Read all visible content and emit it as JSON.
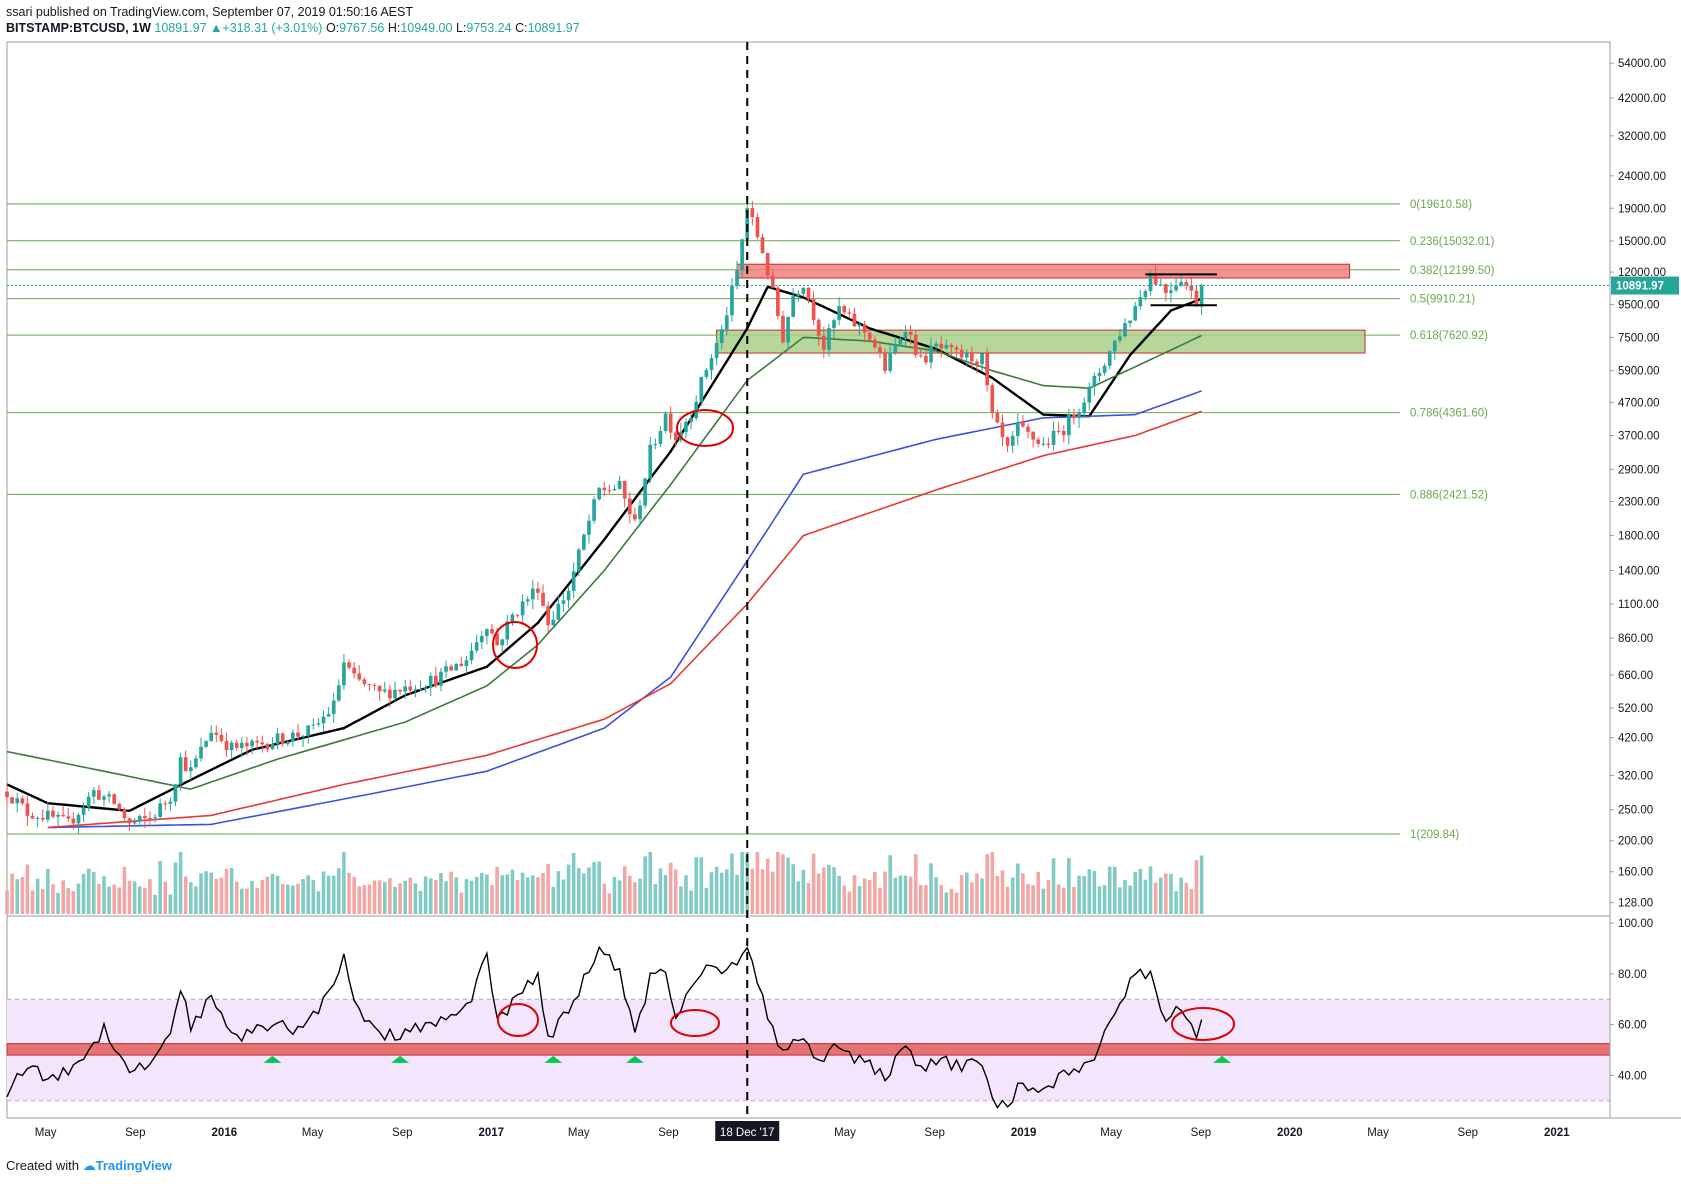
{
  "header": {
    "author": "ssari",
    "published_text": " published on TradingView.com, September 07, 2019 01:50:16 AEST",
    "symbol": "BITSTAMP:BTCUSD, 1W",
    "last": "10891.97",
    "change": "+318.31 (+3.01%)",
    "o_label": "O:",
    "o": "9767.56",
    "h_label": "H:",
    "h": "10949.00",
    "l_label": "L:",
    "l": "9753.24",
    "c_label": "C:",
    "c": "10891.97"
  },
  "footer": {
    "created_with": "Created with",
    "brand": "TradingView"
  },
  "colors": {
    "up": "#26a69a",
    "down": "#ef5350",
    "ma_black": "#000000",
    "ma_green": "#3d7a3d",
    "ma_blue": "#3c50dc",
    "ma_red": "#e53935",
    "fib": "#6aa84f",
    "rsi_band": "#f3e5fc",
    "resistance_zone": "#f08080",
    "support_zone": "#a9cf8a",
    "annotation": "#e00000",
    "marker": "#00c853"
  },
  "chart_data": [
    {
      "type": "candlestick",
      "title": "BITSTAMP:BTCUSD, 1W",
      "y_scale": "log",
      "price_ticks": [
        "54000.00",
        "42000.00",
        "32000.00",
        "24000.00",
        "19000.00",
        "15000.00",
        "12000.00",
        "9500.00",
        "7500.00",
        "5900.00",
        "4700.00",
        "3700.00",
        "2900.00",
        "2300.00",
        "1800.00",
        "1400.00",
        "1100.00",
        "860.00",
        "660.00",
        "520.00",
        "420.00",
        "320.00",
        "250.00",
        "200.00",
        "160.00",
        "128.00"
      ],
      "price_tick_values": [
        54000,
        42000,
        32000,
        24000,
        19000,
        15000,
        12000,
        9500,
        7500,
        5900,
        4700,
        3700,
        2900,
        2300,
        1800,
        1400,
        1100,
        860,
        660,
        520,
        420,
        320,
        250,
        200,
        160,
        128
      ],
      "ylim": [
        118,
        62000
      ],
      "x_ticks": [
        "May",
        "Sep",
        "2016",
        "May",
        "Sep",
        "2017",
        "May",
        "Sep",
        "18 Dec '17",
        "May",
        "Sep",
        "2019",
        "May",
        "Sep",
        "2020",
        "May",
        "Sep",
        "2021"
      ],
      "x_tick_dates": [
        "2015-05",
        "2015-09",
        "2016-01",
        "2016-05",
        "2016-09",
        "2017-01",
        "2017-05",
        "2017-09",
        "2017-12-18",
        "2018-05",
        "2018-09",
        "2019-01",
        "2019-05",
        "2019-09",
        "2020-01",
        "2020-05",
        "2020-09",
        "2021-01"
      ],
      "xlim": [
        "2015-03-09",
        "2021-03-15"
      ],
      "last_price_label": "10891.97",
      "last_price": 10891.97,
      "fibonacci": [
        {
          "label": "0(19610.58)",
          "price": 19610.58
        },
        {
          "label": "0.236(15032.01)",
          "price": 15032.01
        },
        {
          "label": "0.382(12199.50)",
          "price": 12199.5
        },
        {
          "label": "0.5(9910.21)",
          "price": 9910.21
        },
        {
          "label": "0.618(7620.92)",
          "price": 7620.92
        },
        {
          "label": "0.786(4361.60)",
          "price": 4361.6
        },
        {
          "label": "0.886(2421.52)",
          "price": 2421.52
        },
        {
          "label": "1(209.84)",
          "price": 209.84
        }
      ],
      "zones": [
        {
          "name": "resistance",
          "from": "2017-12-04",
          "to": "2020-03-23",
          "low": 11500,
          "high": 12700
        },
        {
          "name": "support",
          "from": "2017-11-06",
          "to": "2020-04-13",
          "low": 6700,
          "high": 7900
        }
      ],
      "vertical_marker": {
        "date": "2017-12-18",
        "label": "18 Dec '17"
      },
      "price_path": [
        [
          "2015-03-09",
          285
        ],
        [
          "2015-04-06",
          245
        ],
        [
          "2015-05-04",
          238
        ],
        [
          "2015-06-01",
          225
        ],
        [
          "2015-07-06",
          285
        ],
        [
          "2015-08-03",
          262
        ],
        [
          "2015-08-24",
          225
        ],
        [
          "2015-09-21",
          235
        ],
        [
          "2015-10-19",
          275
        ],
        [
          "2015-11-02",
          360
        ],
        [
          "2015-11-16",
          330
        ],
        [
          "2015-12-14",
          445
        ],
        [
          "2016-01-11",
          390
        ],
        [
          "2016-02-08",
          395
        ],
        [
          "2016-03-14",
          415
        ],
        [
          "2016-04-11",
          430
        ],
        [
          "2016-05-02",
          445
        ],
        [
          "2016-05-30",
          530
        ],
        [
          "2016-06-13",
          720
        ],
        [
          "2016-06-27",
          640
        ],
        [
          "2016-08-01",
          575
        ],
        [
          "2016-09-05",
          605
        ],
        [
          "2016-10-17",
          640
        ],
        [
          "2016-11-28",
          740
        ],
        [
          "2016-12-26",
          960
        ],
        [
          "2017-01-09",
          820
        ],
        [
          "2017-01-30",
          1010
        ],
        [
          "2017-03-06",
          1250
        ],
        [
          "2017-03-20",
          960
        ],
        [
          "2017-04-17",
          1220
        ],
        [
          "2017-05-08",
          1780
        ],
        [
          "2017-05-29",
          2500
        ],
        [
          "2017-06-26",
          2550
        ],
        [
          "2017-07-17",
          1950
        ],
        [
          "2017-08-07",
          3300
        ],
        [
          "2017-08-28",
          4300
        ],
        [
          "2017-09-11",
          3650
        ],
        [
          "2017-10-02",
          4400
        ],
        [
          "2017-10-23",
          6000
        ],
        [
          "2017-11-13",
          7800
        ],
        [
          "2017-12-04",
          12000
        ],
        [
          "2017-12-18",
          19100
        ],
        [
          "2018-01-08",
          14000
        ],
        [
          "2018-02-05",
          7500
        ],
        [
          "2018-02-19",
          10200
        ],
        [
          "2018-03-05",
          11200
        ],
        [
          "2018-04-02",
          7000
        ],
        [
          "2018-04-23",
          9200
        ],
        [
          "2018-05-07",
          8500
        ],
        [
          "2018-06-04",
          7600
        ],
        [
          "2018-06-25",
          6000
        ],
        [
          "2018-07-23",
          8200
        ],
        [
          "2018-08-13",
          6300
        ],
        [
          "2018-09-03",
          7000
        ],
        [
          "2018-10-01",
          6600
        ],
        [
          "2018-11-05",
          6400
        ],
        [
          "2018-11-19",
          4200
        ],
        [
          "2018-12-10",
          3300
        ],
        [
          "2018-12-24",
          3900
        ],
        [
          "2019-01-28",
          3450
        ],
        [
          "2019-02-25",
          3900
        ],
        [
          "2019-04-01",
          5100
        ],
        [
          "2019-05-13",
          7800
        ],
        [
          "2019-05-27",
          8700
        ],
        [
          "2019-06-24",
          11800
        ],
        [
          "2019-07-15",
          10500
        ],
        [
          "2019-08-05",
          11600
        ],
        [
          "2019-08-26",
          9700
        ],
        [
          "2019-09-02",
          10891.97
        ]
      ],
      "moving_averages": [
        {
          "color": "#000000",
          "points": [
            [
              "2015-03-09",
              300
            ],
            [
              "2015-05-04",
              262
            ],
            [
              "2015-08-24",
              248
            ],
            [
              "2015-11-16",
              310
            ],
            [
              "2016-02-08",
              385
            ],
            [
              "2016-06-13",
              450
            ],
            [
              "2016-09-05",
              570
            ],
            [
              "2016-12-26",
              700
            ],
            [
              "2017-03-06",
              960
            ],
            [
              "2017-06-05",
              1750
            ],
            [
              "2017-09-04",
              3300
            ],
            [
              "2017-12-18",
              8000
            ],
            [
              "2018-01-15",
              10800
            ],
            [
              "2018-03-05",
              10000
            ],
            [
              "2018-06-04",
              8000
            ],
            [
              "2018-09-03",
              6900
            ],
            [
              "2018-11-19",
              5600
            ],
            [
              "2019-01-28",
              4300
            ],
            [
              "2019-04-01",
              4250
            ],
            [
              "2019-05-27",
              6600
            ],
            [
              "2019-07-22",
              9100
            ],
            [
              "2019-09-02",
              9900
            ]
          ]
        },
        {
          "color": "#3d7a3d",
          "points": [
            [
              "2015-03-09",
              380
            ],
            [
              "2015-08-03",
              325
            ],
            [
              "2015-11-16",
              290
            ],
            [
              "2016-03-14",
              360
            ],
            [
              "2016-09-05",
              470
            ],
            [
              "2016-12-26",
              610
            ],
            [
              "2017-03-06",
              820
            ],
            [
              "2017-06-05",
              1400
            ],
            [
              "2017-09-04",
              2600
            ],
            [
              "2017-12-18",
              5500
            ],
            [
              "2018-03-05",
              7500
            ],
            [
              "2018-06-04",
              7300
            ],
            [
              "2018-09-03",
              6800
            ],
            [
              "2018-11-19",
              5900
            ],
            [
              "2019-01-28",
              5300
            ],
            [
              "2019-04-01",
              5200
            ],
            [
              "2019-07-01",
              6500
            ],
            [
              "2019-09-02",
              7600
            ]
          ]
        },
        {
          "color": "#3c50dc",
          "points": [
            [
              "2015-05-04",
              220
            ],
            [
              "2015-12-14",
              225
            ],
            [
              "2016-06-13",
              270
            ],
            [
              "2016-12-26",
              330
            ],
            [
              "2017-06-05",
              450
            ],
            [
              "2017-09-04",
              650
            ],
            [
              "2017-12-18",
              1500
            ],
            [
              "2018-03-05",
              2800
            ],
            [
              "2018-09-03",
              3600
            ],
            [
              "2019-01-28",
              4200
            ],
            [
              "2019-06-03",
              4300
            ],
            [
              "2019-09-02",
              5100
            ]
          ]
        },
        {
          "color": "#e53935",
          "points": [
            [
              "2015-05-04",
              220
            ],
            [
              "2015-12-14",
              240
            ],
            [
              "2016-06-13",
              300
            ],
            [
              "2016-12-26",
              370
            ],
            [
              "2017-06-05",
              480
            ],
            [
              "2017-09-04",
              620
            ],
            [
              "2017-12-18",
              1100
            ],
            [
              "2018-03-05",
              1800
            ],
            [
              "2018-09-03",
              2500
            ],
            [
              "2019-01-28",
              3200
            ],
            [
              "2019-06-03",
              3700
            ],
            [
              "2019-09-02",
              4400
            ]
          ]
        }
      ]
    },
    {
      "type": "line",
      "title": "RSI",
      "y_ticks": [
        "100.00",
        "80.00",
        "60.00",
        "40.00"
      ],
      "y_tick_values": [
        100,
        80,
        60,
        40
      ],
      "ylim": [
        24,
        102
      ],
      "band": [
        30,
        70
      ],
      "highlight_zone": [
        48,
        52.5
      ],
      "values": [
        [
          "2015-03-09",
          34
        ],
        [
          "2015-04-06",
          44
        ],
        [
          "2015-05-04",
          38
        ],
        [
          "2015-06-01",
          42
        ],
        [
          "2015-07-06",
          52
        ],
        [
          "2015-07-20",
          59
        ],
        [
          "2015-08-24",
          42
        ],
        [
          "2015-09-21",
          44
        ],
        [
          "2015-10-19",
          58
        ],
        [
          "2015-11-02",
          74
        ],
        [
          "2015-11-16",
          60
        ],
        [
          "2015-12-14",
          70
        ],
        [
          "2016-01-11",
          55
        ],
        [
          "2016-02-08",
          57
        ],
        [
          "2016-03-14",
          60
        ],
        [
          "2016-04-11",
          58
        ],
        [
          "2016-05-02",
          64
        ],
        [
          "2016-05-30",
          75
        ],
        [
          "2016-06-13",
          86
        ],
        [
          "2016-06-27",
          68
        ],
        [
          "2016-08-01",
          55
        ],
        [
          "2016-09-05",
          57
        ],
        [
          "2016-10-17",
          60
        ],
        [
          "2016-11-28",
          66
        ],
        [
          "2016-12-26",
          88
        ],
        [
          "2017-01-09",
          62
        ],
        [
          "2017-01-30",
          68
        ],
        [
          "2017-03-06",
          80
        ],
        [
          "2017-03-20",
          55
        ],
        [
          "2017-04-17",
          65
        ],
        [
          "2017-05-08",
          78
        ],
        [
          "2017-05-29",
          90
        ],
        [
          "2017-06-26",
          80
        ],
        [
          "2017-07-17",
          55
        ],
        [
          "2017-08-07",
          78
        ],
        [
          "2017-08-28",
          82
        ],
        [
          "2017-09-11",
          63
        ],
        [
          "2017-10-02",
          75
        ],
        [
          "2017-10-23",
          84
        ],
        [
          "2017-11-13",
          80
        ],
        [
          "2017-12-04",
          86
        ],
        [
          "2017-12-18",
          91
        ],
        [
          "2018-01-08",
          70
        ],
        [
          "2018-02-05",
          48
        ],
        [
          "2018-02-19",
          52
        ],
        [
          "2018-03-05",
          54
        ],
        [
          "2018-04-02",
          45
        ],
        [
          "2018-04-23",
          53
        ],
        [
          "2018-05-07",
          48
        ],
        [
          "2018-06-04",
          44
        ],
        [
          "2018-06-25",
          40
        ],
        [
          "2018-07-23",
          50
        ],
        [
          "2018-08-13",
          42
        ],
        [
          "2018-09-03",
          46
        ],
        [
          "2018-10-01",
          44
        ],
        [
          "2018-11-05",
          44
        ],
        [
          "2018-11-19",
          30
        ],
        [
          "2018-12-10",
          28
        ],
        [
          "2018-12-24",
          35
        ],
        [
          "2019-01-28",
          35
        ],
        [
          "2019-02-25",
          40
        ],
        [
          "2019-04-01",
          45
        ],
        [
          "2019-05-13",
          66
        ],
        [
          "2019-05-27",
          80
        ],
        [
          "2019-06-24",
          80
        ],
        [
          "2019-07-15",
          62
        ],
        [
          "2019-08-05",
          68
        ],
        [
          "2019-08-26",
          57
        ],
        [
          "2019-09-02",
          60
        ]
      ]
    }
  ]
}
